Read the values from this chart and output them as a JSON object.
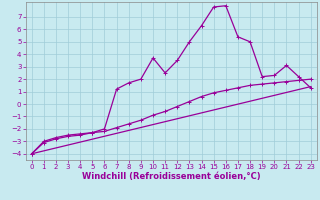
{
  "title": "",
  "xlabel": "Windchill (Refroidissement éolien,°C)",
  "ylabel": "",
  "bg_color": "#c8eaf0",
  "grid_color": "#a0cdd8",
  "line_color": "#990099",
  "spine_color": "#888888",
  "xlim": [
    -0.5,
    23.5
  ],
  "ylim": [
    -4.5,
    8.2
  ],
  "xticks": [
    0,
    1,
    2,
    3,
    4,
    5,
    6,
    7,
    8,
    9,
    10,
    11,
    12,
    13,
    14,
    15,
    16,
    17,
    18,
    19,
    20,
    21,
    22,
    23
  ],
  "yticks": [
    -4,
    -3,
    -2,
    -1,
    0,
    1,
    2,
    3,
    4,
    5,
    6,
    7
  ],
  "line1_x": [
    0,
    1,
    2,
    3,
    4,
    5,
    6,
    7,
    8,
    9,
    10,
    11,
    12,
    13,
    14,
    15,
    16,
    17,
    18,
    19,
    20,
    21,
    22,
    23
  ],
  "line1_y": [
    -4.0,
    -3.0,
    -2.7,
    -2.5,
    -2.4,
    -2.3,
    -2.0,
    1.2,
    1.7,
    2.0,
    3.7,
    2.5,
    3.5,
    5.0,
    6.3,
    7.8,
    7.9,
    5.4,
    5.0,
    2.2,
    2.3,
    3.1,
    2.2,
    1.3
  ],
  "line2_x": [
    0,
    1,
    2,
    3,
    4,
    5,
    6,
    7,
    8,
    9,
    10,
    11,
    12,
    13,
    14,
    15,
    16,
    17,
    18,
    19,
    20,
    21,
    22,
    23
  ],
  "line2_y": [
    -4.0,
    -3.1,
    -2.8,
    -2.6,
    -2.5,
    -2.3,
    -2.2,
    -1.9,
    -1.6,
    -1.3,
    -0.9,
    -0.6,
    -0.2,
    0.2,
    0.6,
    0.9,
    1.1,
    1.3,
    1.5,
    1.6,
    1.7,
    1.8,
    1.9,
    2.0
  ],
  "line3_x": [
    0,
    23
  ],
  "line3_y": [
    -4.0,
    1.4
  ],
  "marker_size": 3,
  "linewidth": 0.9,
  "tick_fontsize": 5,
  "label_fontsize": 6,
  "label_fontweight": "bold"
}
